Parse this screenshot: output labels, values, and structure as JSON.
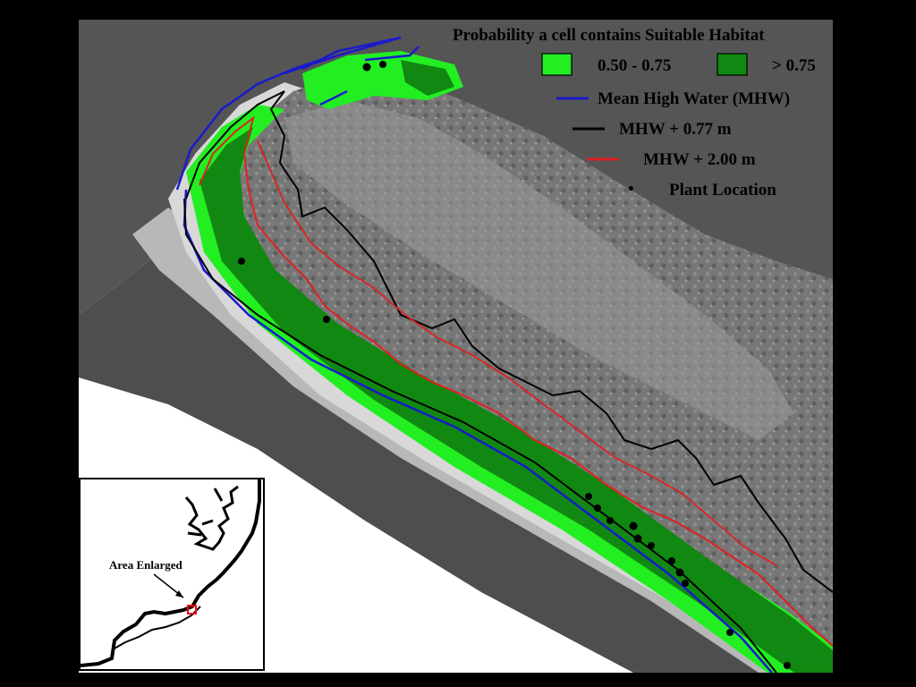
{
  "legend": {
    "title": "Probability a cell contains Suitable Habitat",
    "habitat_classes": [
      {
        "label": "0.50 - 0.75",
        "color": "#22ee22"
      },
      {
        "label": "> 0.75",
        "color": "#118811"
      }
    ],
    "lines": [
      {
        "label": "Mean High Water (MHW)",
        "color": "#1a1acc"
      },
      {
        "label": "MHW + 0.77 m",
        "color": "#000000"
      },
      {
        "label": "MHW + 2.00 m",
        "color": "#e02020"
      }
    ],
    "point": {
      "label": "Plant Location",
      "symbol": "•",
      "color": "#000000"
    }
  },
  "inset": {
    "label": "Area Enlarged",
    "marker_color": "#ff0000"
  },
  "colors": {
    "background": "#000000",
    "water": "#ffffff"
  }
}
